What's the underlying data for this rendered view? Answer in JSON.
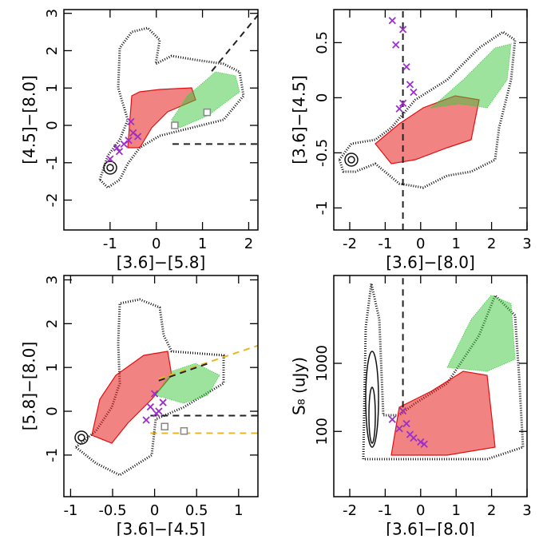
{
  "chart_data": [
    {
      "type": "scatter",
      "xlabel": "[3.6]−[5.8]",
      "ylabel": "[4.5]−[8.0]",
      "xlim": [
        -2,
        2.2
      ],
      "ylim": [
        -2.8,
        3.1
      ],
      "xticks": [
        -1,
        0,
        1,
        2
      ],
      "yticks": [
        -2,
        -1,
        0,
        1,
        2,
        3
      ],
      "series": [
        {
          "color": "#9b30c8",
          "marker": "cross",
          "x": [
            -1,
            -0.85,
            -0.8,
            -0.7,
            -0.6,
            -0.5,
            -0.55,
            -0.4
          ],
          "y": [
            -0.9,
            -0.6,
            -0.7,
            -0.5,
            -0.4,
            -0.2,
            0.1,
            -0.3
          ]
        },
        {
          "color": "#888888",
          "marker": "square",
          "x": [
            1.1,
            0.4
          ],
          "y": [
            0.35,
            0
          ]
        }
      ],
      "lines": [
        {
          "color": "#222222",
          "x": [
            0.35,
            2.2
          ],
          "y": [
            -0.5,
            -0.5
          ]
        },
        {
          "color": "#222222",
          "x": [
            1.2,
            2.2
          ],
          "y": [
            1.45,
            2.95
          ]
        }
      ]
    },
    {
      "type": "scatter",
      "xlabel": "[3.6]−[8.0]",
      "ylabel": "[3.6]−[4.5]",
      "xlim": [
        -2.45,
        3
      ],
      "ylim": [
        -1.2,
        0.8
      ],
      "xticks": [
        -2,
        -1,
        0,
        1,
        2,
        3
      ],
      "yticks": [
        -1,
        -0.5,
        0,
        0.5
      ],
      "series": [
        {
          "color": "#9b30c8",
          "marker": "cross",
          "x": [
            -0.8,
            -0.5,
            -0.7,
            -0.4,
            -0.3,
            -0.5,
            -0.6,
            -0.2
          ],
          "y": [
            0.7,
            0.62,
            0.48,
            0.28,
            0.12,
            -0.05,
            -0.1,
            0.05
          ]
        }
      ],
      "lines": [
        {
          "color": "#222222",
          "x": [
            -0.5,
            -0.5
          ],
          "y": [
            -1.2,
            0.8
          ]
        }
      ]
    },
    {
      "type": "scatter",
      "xlabel": "[3.6]−[4.5]",
      "ylabel": "[5.8]−[8.0]",
      "xlim": [
        -1.08,
        1.23
      ],
      "ylim": [
        -1.95,
        3.1
      ],
      "xticks": [
        -1,
        -0.5,
        0,
        0.5,
        1
      ],
      "yticks": [
        -1,
        0,
        1,
        2,
        3
      ],
      "series": [
        {
          "color": "#9b30c8",
          "marker": "cross",
          "x": [
            0,
            -0.05,
            0.05,
            0.1,
            -0.1,
            0.02
          ],
          "y": [
            0.4,
            0.1,
            0,
            0.2,
            -0.2,
            -0.05
          ]
        },
        {
          "color": "#888888",
          "marker": "square",
          "x": [
            0.12,
            0.35
          ],
          "y": [
            -0.35,
            -0.45
          ]
        }
      ],
      "lines": [
        {
          "color": "#222222",
          "x": [
            -0.05,
            1.23
          ],
          "y": [
            -0.1,
            -0.1
          ]
        },
        {
          "color": "#e8b820",
          "x": [
            -0.05,
            1.23
          ],
          "y": [
            -0.5,
            -0.5
          ]
        },
        {
          "color": "#e8b820",
          "x": [
            0.05,
            1.23
          ],
          "y": [
            0.74,
            1.5
          ]
        },
        {
          "color": "#222222",
          "x": [
            0.05,
            0.65
          ],
          "y": [
            0.7,
            1.1
          ]
        }
      ]
    },
    {
      "type": "scatter",
      "xlabel": "[3.6]−[8.0]",
      "ylabel": "S₈ (uJy)",
      "ylog": true,
      "xlim": [
        -2.45,
        3
      ],
      "ylim": [
        11,
        19500
      ],
      "xticks": [
        -2,
        -1,
        0,
        1,
        2,
        3
      ],
      "yticks": [
        100,
        1000
      ],
      "series": [
        {
          "color": "#9b30c8",
          "marker": "cross",
          "x": [
            -0.8,
            -0.5,
            -0.3,
            -0.2,
            0,
            -0.6,
            -0.4,
            0.1
          ],
          "y": [
            150,
            200,
            90,
            80,
            70,
            110,
            130,
            65
          ]
        }
      ],
      "lines": [
        {
          "color": "#222222",
          "x": [
            -0.5,
            -0.5
          ],
          "y": [
            225,
            19500
          ]
        }
      ]
    }
  ]
}
